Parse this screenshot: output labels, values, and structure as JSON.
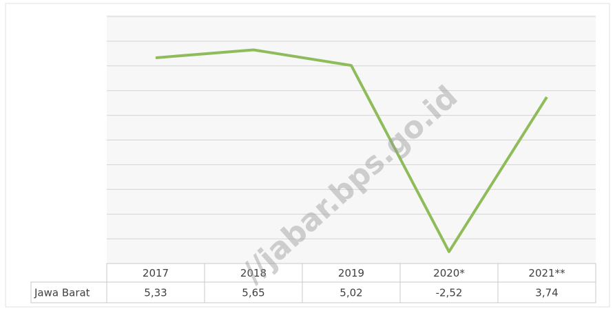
{
  "chart_data": {
    "type": "line",
    "categories": [
      "2017",
      "2018",
      "2019",
      "2020*",
      "2021**"
    ],
    "series": [
      {
        "name": "Jawa Barat",
        "color": "#8fbc5a",
        "values": [
          5.33,
          5.65,
          5.02,
          -2.52,
          3.74
        ],
        "value_labels": [
          "5,33",
          "5,65",
          "5,02",
          "-2,52",
          "3,74"
        ]
      }
    ],
    "ylim": [
      -3,
      7
    ],
    "yticks": [
      -3,
      -2,
      -1,
      0,
      1,
      2,
      3,
      4,
      5,
      6,
      7
    ],
    "grid": true,
    "watermark": "//jabar.bps.go.id"
  }
}
